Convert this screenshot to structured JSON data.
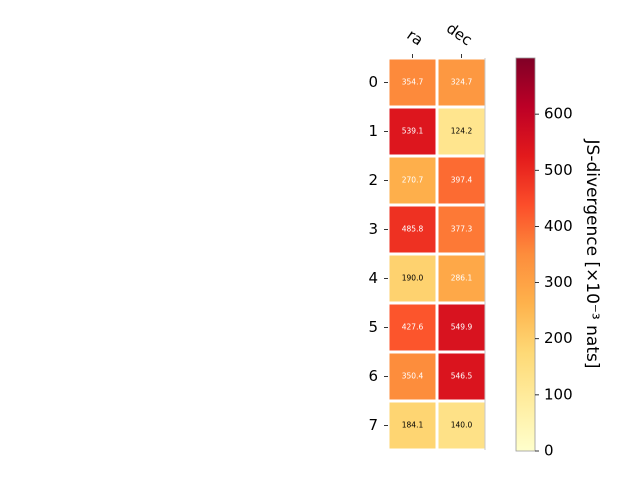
{
  "chart_data": {
    "type": "heatmap",
    "columns": [
      "ra",
      "dec"
    ],
    "rows": [
      "0",
      "1",
      "2",
      "3",
      "4",
      "5",
      "6",
      "7"
    ],
    "values": [
      [
        354.7,
        324.7
      ],
      [
        539.1,
        124.2
      ],
      [
        270.7,
        397.4
      ],
      [
        485.8,
        377.3
      ],
      [
        190.0,
        286.1
      ],
      [
        427.6,
        549.9
      ],
      [
        350.4,
        546.5
      ],
      [
        184.1,
        140.0
      ]
    ],
    "cell_labels": [
      [
        "354.7",
        "324.7"
      ],
      [
        "539.1",
        "124.2"
      ],
      [
        "270.7",
        "397.4"
      ],
      [
        "485.8",
        "377.3"
      ],
      [
        "190.0",
        "286.1"
      ],
      [
        "427.6",
        "549.9"
      ],
      [
        "350.4",
        "546.5"
      ],
      [
        "184.1",
        "140.0"
      ]
    ],
    "colorbar": {
      "label": "JS-divergence [×10⁻³ nats]",
      "range": [
        0,
        700
      ],
      "ticks": [
        0,
        100,
        200,
        300,
        400,
        500,
        600
      ],
      "colormap": "YlOrRd"
    }
  }
}
